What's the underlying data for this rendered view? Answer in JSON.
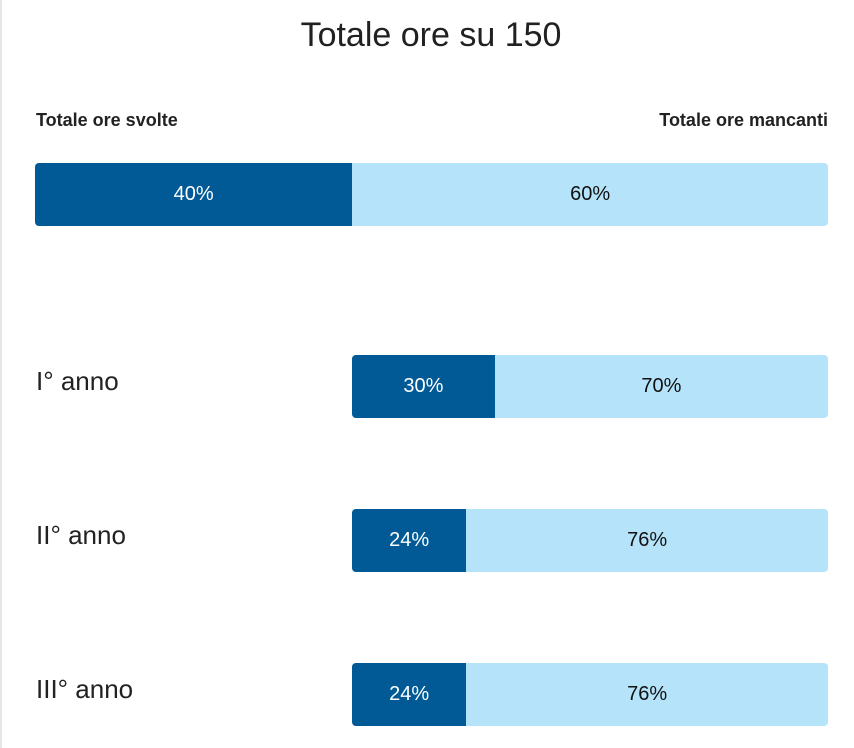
{
  "chart_data": {
    "type": "bar",
    "title": "Totale ore su 150",
    "legend": {
      "done_label": "Totale ore svolte",
      "remaining_label": "Totale ore mancanti"
    },
    "total": {
      "done_pct": 40,
      "remaining_pct": 60,
      "done_text": "40%",
      "remaining_text": "60%"
    },
    "rows": [
      {
        "label": "I° anno",
        "done_pct": 30,
        "remaining_pct": 70,
        "done_text": "30%",
        "remaining_text": "70%"
      },
      {
        "label": "II° anno",
        "done_pct": 24,
        "remaining_pct": 76,
        "done_text": "24%",
        "remaining_text": "76%"
      },
      {
        "label": "III° anno",
        "done_pct": 24,
        "remaining_pct": 76,
        "done_text": "24%",
        "remaining_text": "76%"
      }
    ],
    "colors": {
      "done": "#015a96",
      "remaining": "#b5e4fa"
    }
  }
}
